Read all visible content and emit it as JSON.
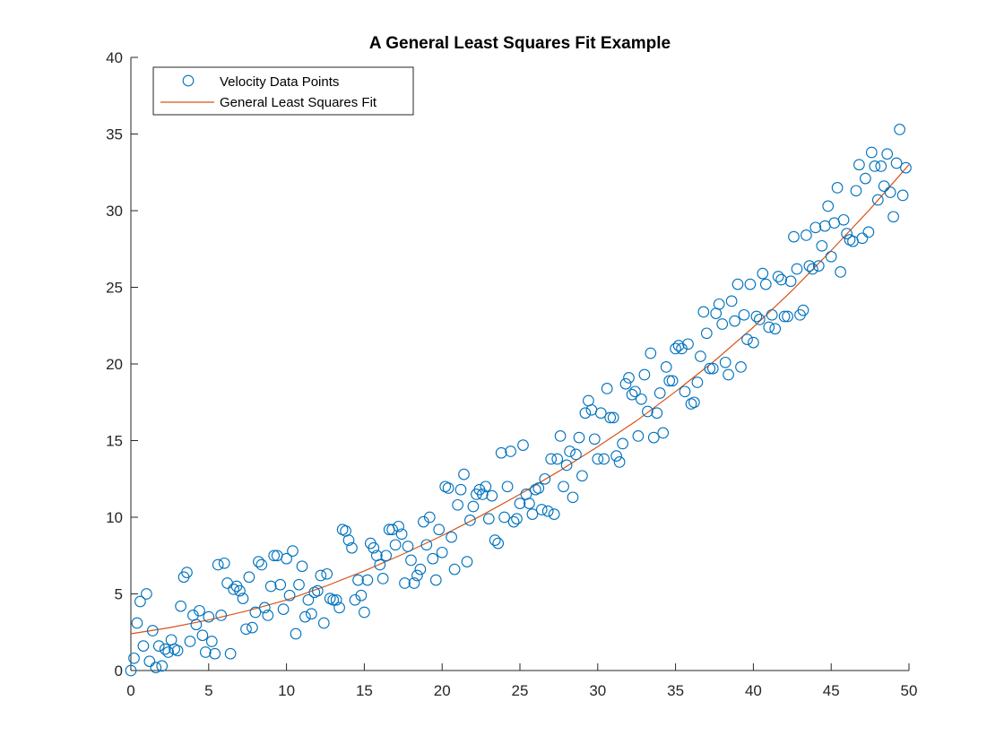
{
  "chart_data": {
    "type": "scatter",
    "title": "A General Least Squares Fit Example",
    "xlabel": "",
    "ylabel": "",
    "xlim": [
      0,
      50
    ],
    "ylim": [
      0,
      40
    ],
    "xticks": [
      0,
      5,
      10,
      15,
      20,
      25,
      30,
      35,
      40,
      45,
      50
    ],
    "yticks": [
      0,
      5,
      10,
      15,
      20,
      25,
      30,
      35,
      40
    ],
    "grid": false,
    "legend_position": "top-left",
    "colors": {
      "points": "#0072BD",
      "fit": "#D95319"
    },
    "series": [
      {
        "name": "Velocity Data Points",
        "type": "scatter",
        "marker": "circle",
        "points": [
          [
            0.0,
            0.0
          ],
          [
            0.2,
            0.8
          ],
          [
            0.4,
            3.1
          ],
          [
            0.6,
            4.5
          ],
          [
            0.8,
            1.6
          ],
          [
            1.0,
            5.0
          ],
          [
            1.2,
            0.6
          ],
          [
            1.4,
            2.6
          ],
          [
            1.6,
            0.2
          ],
          [
            1.8,
            1.6
          ],
          [
            2.0,
            0.3
          ],
          [
            2.2,
            1.4
          ],
          [
            2.4,
            1.2
          ],
          [
            2.6,
            2.0
          ],
          [
            2.8,
            1.4
          ],
          [
            3.0,
            1.3
          ],
          [
            3.2,
            4.2
          ],
          [
            3.4,
            6.1
          ],
          [
            3.6,
            6.4
          ],
          [
            3.8,
            1.9
          ],
          [
            4.0,
            3.6
          ],
          [
            4.2,
            3.0
          ],
          [
            4.4,
            3.9
          ],
          [
            4.6,
            2.3
          ],
          [
            4.8,
            1.2
          ],
          [
            5.0,
            3.5
          ],
          [
            5.2,
            1.9
          ],
          [
            5.4,
            1.1
          ],
          [
            5.6,
            6.9
          ],
          [
            5.8,
            3.6
          ],
          [
            6.0,
            7.0
          ],
          [
            6.2,
            5.7
          ],
          [
            6.4,
            1.1
          ],
          [
            6.6,
            5.3
          ],
          [
            6.8,
            5.5
          ],
          [
            7.0,
            5.2
          ],
          [
            7.2,
            4.7
          ],
          [
            7.4,
            2.7
          ],
          [
            7.6,
            6.1
          ],
          [
            7.8,
            2.8
          ],
          [
            8.0,
            3.8
          ],
          [
            8.2,
            7.1
          ],
          [
            8.4,
            6.9
          ],
          [
            8.6,
            4.1
          ],
          [
            8.8,
            3.6
          ],
          [
            9.0,
            5.5
          ],
          [
            9.2,
            7.5
          ],
          [
            9.4,
            7.5
          ],
          [
            9.6,
            5.6
          ],
          [
            9.8,
            4.0
          ],
          [
            10.0,
            7.3
          ],
          [
            10.2,
            4.9
          ],
          [
            10.4,
            7.8
          ],
          [
            10.6,
            2.4
          ],
          [
            10.8,
            5.6
          ],
          [
            11.0,
            6.8
          ],
          [
            11.2,
            3.5
          ],
          [
            11.4,
            4.6
          ],
          [
            11.6,
            3.7
          ],
          [
            11.8,
            5.1
          ],
          [
            12.0,
            5.2
          ],
          [
            12.2,
            6.2
          ],
          [
            12.4,
            3.1
          ],
          [
            12.6,
            6.3
          ],
          [
            12.8,
            4.7
          ],
          [
            13.0,
            4.6
          ],
          [
            13.2,
            4.6
          ],
          [
            13.4,
            4.1
          ],
          [
            13.6,
            9.2
          ],
          [
            13.8,
            9.1
          ],
          [
            14.0,
            8.5
          ],
          [
            14.2,
            8.0
          ],
          [
            14.4,
            4.6
          ],
          [
            14.6,
            5.9
          ],
          [
            14.8,
            4.9
          ],
          [
            15.0,
            3.8
          ],
          [
            15.2,
            5.9
          ],
          [
            15.4,
            8.3
          ],
          [
            15.6,
            8.0
          ],
          [
            15.8,
            7.5
          ],
          [
            16.0,
            6.9
          ],
          [
            16.2,
            6.0
          ],
          [
            16.4,
            7.5
          ],
          [
            16.6,
            9.2
          ],
          [
            16.8,
            9.2
          ],
          [
            17.0,
            8.2
          ],
          [
            17.2,
            9.4
          ],
          [
            17.4,
            8.9
          ],
          [
            17.6,
            5.7
          ],
          [
            17.8,
            8.1
          ],
          [
            18.0,
            7.2
          ],
          [
            18.2,
            5.7
          ],
          [
            18.4,
            6.2
          ],
          [
            18.6,
            6.6
          ],
          [
            18.8,
            9.7
          ],
          [
            19.0,
            8.2
          ],
          [
            19.2,
            10.0
          ],
          [
            19.4,
            7.3
          ],
          [
            19.6,
            5.9
          ],
          [
            19.8,
            9.2
          ],
          [
            20.0,
            7.7
          ],
          [
            20.2,
            12.0
          ],
          [
            20.4,
            11.9
          ],
          [
            20.6,
            8.7
          ],
          [
            20.8,
            6.6
          ],
          [
            21.0,
            10.8
          ],
          [
            21.2,
            11.8
          ],
          [
            21.4,
            12.8
          ],
          [
            21.6,
            7.1
          ],
          [
            21.8,
            9.8
          ],
          [
            22.0,
            10.7
          ],
          [
            22.2,
            11.5
          ],
          [
            22.4,
            11.8
          ],
          [
            22.6,
            11.5
          ],
          [
            22.8,
            12.0
          ],
          [
            23.0,
            9.9
          ],
          [
            23.2,
            11.4
          ],
          [
            23.4,
            8.5
          ],
          [
            23.6,
            8.3
          ],
          [
            23.8,
            14.2
          ],
          [
            24.0,
            10.0
          ],
          [
            24.2,
            12.0
          ],
          [
            24.4,
            14.3
          ],
          [
            24.6,
            9.7
          ],
          [
            24.8,
            9.9
          ],
          [
            25.0,
            10.9
          ],
          [
            25.2,
            14.7
          ],
          [
            25.4,
            11.5
          ],
          [
            25.6,
            10.9
          ],
          [
            25.8,
            10.2
          ],
          [
            26.0,
            11.8
          ],
          [
            26.2,
            11.9
          ],
          [
            26.4,
            10.5
          ],
          [
            26.6,
            12.5
          ],
          [
            26.8,
            10.4
          ],
          [
            27.0,
            13.8
          ],
          [
            27.2,
            10.2
          ],
          [
            27.4,
            13.8
          ],
          [
            27.6,
            15.3
          ],
          [
            27.8,
            12.0
          ],
          [
            28.0,
            13.4
          ],
          [
            28.2,
            14.3
          ],
          [
            28.4,
            11.3
          ],
          [
            28.6,
            14.1
          ],
          [
            28.8,
            15.2
          ],
          [
            29.0,
            12.7
          ],
          [
            29.2,
            16.8
          ],
          [
            29.4,
            17.6
          ],
          [
            29.6,
            17.0
          ],
          [
            29.8,
            15.1
          ],
          [
            30.0,
            13.8
          ],
          [
            30.2,
            16.8
          ],
          [
            30.4,
            13.8
          ],
          [
            30.6,
            18.4
          ],
          [
            30.8,
            16.5
          ],
          [
            31.0,
            16.5
          ],
          [
            31.2,
            14.0
          ],
          [
            31.4,
            13.6
          ],
          [
            31.6,
            14.8
          ],
          [
            31.8,
            18.7
          ],
          [
            32.0,
            19.1
          ],
          [
            32.2,
            18.0
          ],
          [
            32.4,
            18.2
          ],
          [
            32.6,
            15.3
          ],
          [
            32.8,
            17.7
          ],
          [
            33.0,
            19.3
          ],
          [
            33.2,
            16.9
          ],
          [
            33.4,
            20.7
          ],
          [
            33.6,
            15.2
          ],
          [
            33.8,
            16.8
          ],
          [
            34.0,
            18.1
          ],
          [
            34.2,
            15.5
          ],
          [
            34.4,
            19.8
          ],
          [
            34.6,
            18.9
          ],
          [
            34.8,
            18.9
          ],
          [
            35.0,
            21.0
          ],
          [
            35.2,
            21.2
          ],
          [
            35.4,
            21.0
          ],
          [
            35.6,
            18.2
          ],
          [
            35.8,
            21.3
          ],
          [
            36.0,
            17.4
          ],
          [
            36.2,
            17.5
          ],
          [
            36.4,
            18.8
          ],
          [
            36.6,
            20.5
          ],
          [
            36.8,
            23.4
          ],
          [
            37.0,
            22.0
          ],
          [
            37.2,
            19.7
          ],
          [
            37.4,
            19.7
          ],
          [
            37.6,
            23.3
          ],
          [
            37.8,
            23.9
          ],
          [
            38.0,
            22.6
          ],
          [
            38.2,
            20.1
          ],
          [
            38.4,
            19.3
          ],
          [
            38.6,
            24.1
          ],
          [
            38.8,
            22.8
          ],
          [
            39.0,
            25.2
          ],
          [
            39.2,
            19.8
          ],
          [
            39.4,
            23.2
          ],
          [
            39.6,
            21.6
          ],
          [
            39.8,
            25.2
          ],
          [
            40.0,
            21.4
          ],
          [
            40.2,
            23.1
          ],
          [
            40.4,
            22.9
          ],
          [
            40.6,
            25.9
          ],
          [
            40.8,
            25.2
          ],
          [
            41.0,
            22.4
          ],
          [
            41.2,
            23.2
          ],
          [
            41.4,
            22.3
          ],
          [
            41.6,
            25.7
          ],
          [
            41.8,
            25.5
          ],
          [
            42.0,
            23.1
          ],
          [
            42.2,
            23.1
          ],
          [
            42.4,
            25.4
          ],
          [
            42.6,
            28.3
          ],
          [
            42.8,
            26.2
          ],
          [
            43.0,
            23.2
          ],
          [
            43.2,
            23.5
          ],
          [
            43.4,
            28.4
          ],
          [
            43.6,
            26.4
          ],
          [
            43.8,
            26.2
          ],
          [
            44.0,
            28.9
          ],
          [
            44.2,
            26.4
          ],
          [
            44.4,
            27.7
          ],
          [
            44.6,
            29.0
          ],
          [
            44.8,
            30.3
          ],
          [
            45.0,
            27.0
          ],
          [
            45.2,
            29.2
          ],
          [
            45.4,
            31.5
          ],
          [
            45.6,
            26.0
          ],
          [
            45.8,
            29.4
          ],
          [
            46.0,
            28.5
          ],
          [
            46.2,
            28.1
          ],
          [
            46.4,
            28.0
          ],
          [
            46.6,
            31.3
          ],
          [
            46.8,
            33.0
          ],
          [
            47.0,
            28.2
          ],
          [
            47.2,
            32.1
          ],
          [
            47.4,
            28.6
          ],
          [
            47.6,
            33.8
          ],
          [
            47.8,
            32.9
          ],
          [
            48.0,
            30.7
          ],
          [
            48.2,
            32.9
          ],
          [
            48.4,
            31.6
          ],
          [
            48.6,
            33.7
          ],
          [
            48.8,
            31.2
          ],
          [
            49.0,
            29.6
          ],
          [
            49.2,
            33.1
          ],
          [
            49.4,
            35.3
          ],
          [
            49.6,
            31.0
          ],
          [
            49.8,
            32.8
          ]
        ]
      },
      {
        "name": "General Least Squares Fit",
        "type": "line",
        "x": [
          0,
          2.5,
          5,
          7.5,
          10,
          12.5,
          15,
          17.5,
          20,
          22.5,
          25,
          27.5,
          30,
          32.5,
          35,
          37.5,
          40,
          42.5,
          45,
          47.5,
          50
        ],
        "y": [
          2.4,
          2.8,
          3.3,
          3.9,
          4.6,
          5.5,
          6.5,
          7.6,
          8.8,
          10.1,
          11.5,
          13.0,
          14.6,
          16.3,
          18.2,
          20.2,
          22.4,
          24.8,
          27.4,
          30.1,
          33.0
        ]
      }
    ]
  }
}
